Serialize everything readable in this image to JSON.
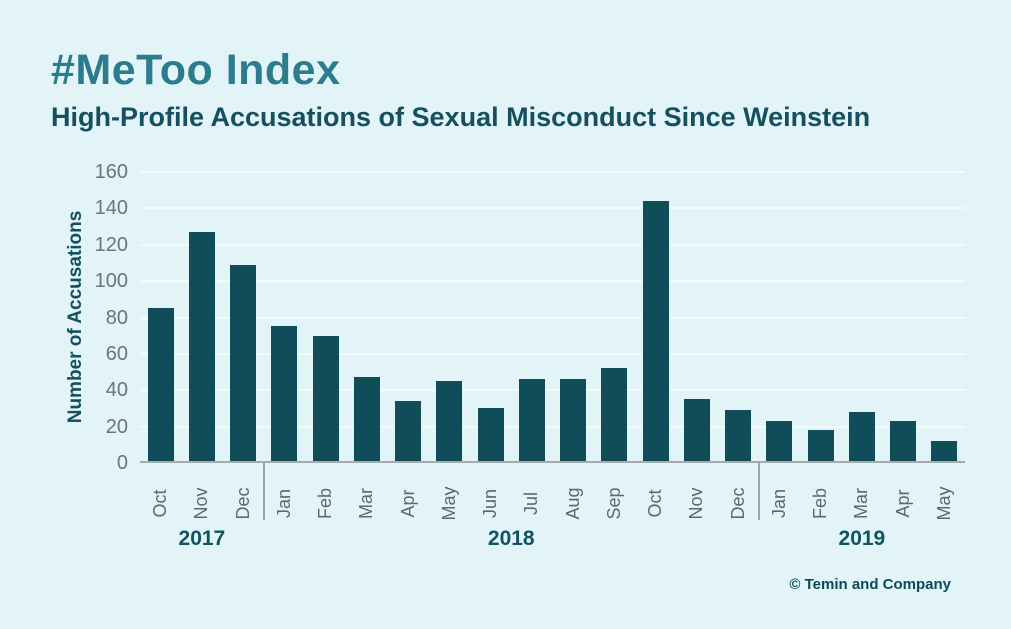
{
  "header": {
    "title": "#MeToo Index",
    "subtitle": "High-Profile Accusations of Sexual Misconduct Since Weinstein"
  },
  "footer": {
    "copyright": "© Temin and Company"
  },
  "chart_data": {
    "type": "bar",
    "title": "#MeToo Index",
    "subtitle": "High-Profile Accusations of Sexual Misconduct Since Weinstein",
    "xlabel": "",
    "ylabel": "Number of Accusations",
    "ylim": [
      0,
      160
    ],
    "yticks": [
      160,
      140,
      120,
      100,
      80,
      60,
      40,
      20,
      0
    ],
    "grid": "horizontal",
    "legend": "none",
    "categories": [
      "Oct",
      "Nov",
      "Dec",
      "Jan",
      "Feb",
      "Mar",
      "Apr",
      "May",
      "Jun",
      "Jul",
      "Aug",
      "Sep",
      "Oct",
      "Nov",
      "Dec",
      "Jan",
      "Feb",
      "Mar",
      "Apr",
      "May"
    ],
    "values": [
      84,
      126,
      108,
      74,
      69,
      46,
      33,
      44,
      29,
      45,
      45,
      51,
      143,
      34,
      28,
      22,
      17,
      27,
      22,
      11
    ],
    "year_groups": [
      {
        "label": "2017",
        "start_index": 0,
        "end_index": 2
      },
      {
        "label": "2018",
        "start_index": 3,
        "end_index": 14
      },
      {
        "label": "2019",
        "start_index": 15,
        "end_index": 19
      }
    ],
    "colors": {
      "background": "#e2f4f8",
      "bar": "#114d58",
      "gridline": "#f2fafc",
      "axis": "#a5a9ab",
      "y_tick_label": "#68767c",
      "x_tick_label": "#5c686e",
      "title": "#2b7c8d",
      "subtitle": "#14505f",
      "year_label": "#0f5460",
      "copyright": "#0c4a57"
    }
  }
}
